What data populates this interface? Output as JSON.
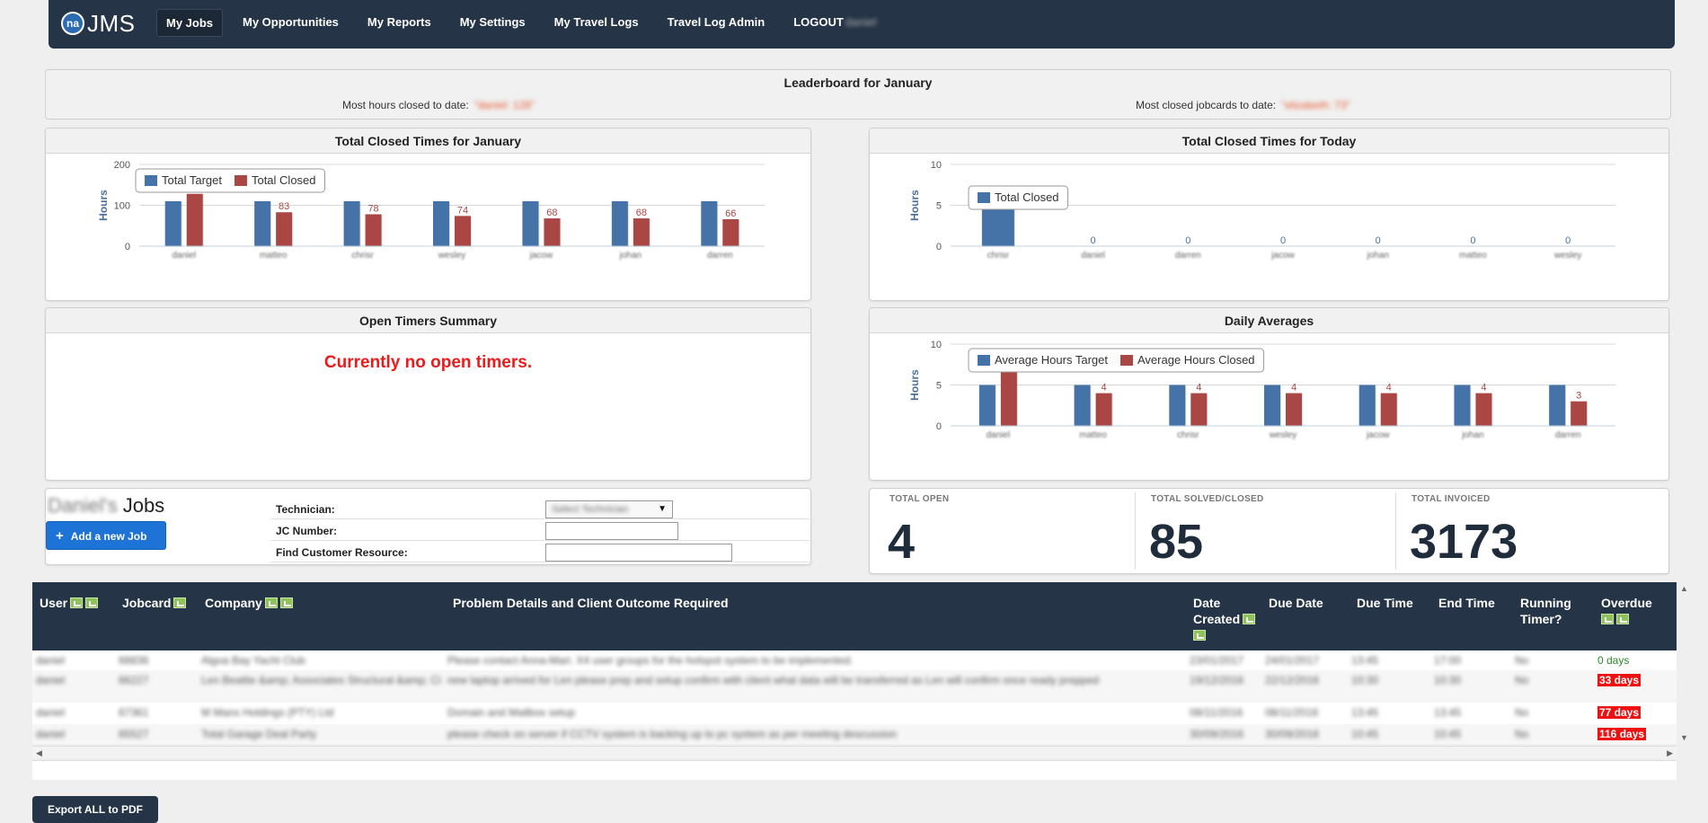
{
  "nav": {
    "logo_text": "na",
    "brand": "JMS",
    "items": [
      {
        "label": "My Jobs",
        "active": true
      },
      {
        "label": "My Opportunities"
      },
      {
        "label": "My Reports"
      },
      {
        "label": "My Settings"
      },
      {
        "label": "My Travel Logs"
      },
      {
        "label": "Travel Log Admin"
      },
      {
        "label": "LOGOUT"
      }
    ],
    "logout_user": "daniel"
  },
  "leaderboard": {
    "title": "Leaderboard for January",
    "hours_label": "Most hours closed to date:",
    "hours_value": "\"daniel: 128\"",
    "jobcards_label": "Most closed jobcards to date:",
    "jobcards_value": "\"elizabeth: 73\""
  },
  "colors": {
    "target": "#4572a7",
    "closed": "#aa4643",
    "nav": "#253446",
    "alert": "#ee1a1a"
  },
  "panels": {
    "closed_month_title": "Total Closed Times for January",
    "closed_today_title": "Total Closed Times for Today",
    "open_timers_title": "Open Timers Summary",
    "open_timers_message": "Currently no open timers.",
    "daily_avg_title": "Daily Averages"
  },
  "chart_data": [
    {
      "type": "bar",
      "title": "Total Closed Times for January",
      "ylabel": "Hours",
      "ylim": [
        0,
        200
      ],
      "yticks": [
        0,
        100,
        200
      ],
      "categories": [
        "daniel",
        "matteo",
        "chrisr",
        "wesley",
        "jacow",
        "johan",
        "darren"
      ],
      "series": [
        {
          "name": "Total Target",
          "values": [
            110,
            110,
            110,
            110,
            110,
            110,
            110
          ]
        },
        {
          "name": "Total Closed",
          "values": [
            128,
            83,
            78,
            74,
            68,
            68,
            66
          ],
          "labels": [
            "",
            "83",
            "78",
            "74",
            "68",
            "68",
            "66"
          ]
        }
      ],
      "legend": "top-left",
      "grid": true
    },
    {
      "type": "bar",
      "title": "Total Closed Times for Today",
      "ylabel": "Hours",
      "ylim": [
        0,
        10
      ],
      "yticks": [
        0,
        5,
        10
      ],
      "categories": [
        "chrisr",
        "daniel",
        "darren",
        "jacow",
        "johan",
        "matteo",
        "wesley"
      ],
      "series": [
        {
          "name": "Total Closed",
          "values": [
            5,
            0,
            0,
            0,
            0,
            0,
            0
          ],
          "labels": [
            "5",
            "0",
            "0",
            "0",
            "0",
            "0",
            "0"
          ]
        }
      ],
      "legend": "top-left",
      "grid": true
    },
    {
      "type": "bar",
      "title": "Daily Averages",
      "ylabel": "Hours",
      "ylim": [
        0,
        10
      ],
      "yticks": [
        0,
        5,
        10
      ],
      "categories": [
        "daniel",
        "matteo",
        "chrisr",
        "wesley",
        "jacow",
        "johan",
        "darren"
      ],
      "series": [
        {
          "name": "Average Hours Target",
          "values": [
            5,
            5,
            5,
            5,
            5,
            5,
            5
          ]
        },
        {
          "name": "Average Hours Closed",
          "values": [
            7,
            4,
            4,
            4,
            4,
            4,
            3
          ],
          "labels": [
            "",
            "4",
            "4",
            "4",
            "4",
            "4",
            "3"
          ]
        }
      ],
      "legend": "top-left",
      "grid": true
    }
  ],
  "jobs": {
    "owner": "Daniel's",
    "title": "Jobs",
    "add_button": "Add a new Job",
    "filters": {
      "technician_label": "Technician:",
      "technician_value": "Select Technician",
      "jc_label": "JC Number:",
      "jc_value": "",
      "resource_label": "Find Customer Resource:",
      "resource_value": ""
    }
  },
  "stats": [
    {
      "label": "TOTAL OPEN",
      "value": "4"
    },
    {
      "label": "TOTAL SOLVED/CLOSED",
      "value": "85"
    },
    {
      "label": "TOTAL INVOICED",
      "value": "3173"
    }
  ],
  "table": {
    "headers": {
      "user": "User",
      "jobcard": "Jobcard",
      "company": "Company",
      "problem": "Problem Details and Client Outcome Required",
      "date_created_1": "Date",
      "date_created_2": "Created",
      "due_date": "Due Date",
      "due_time": "Due Time",
      "end_time": "End Time",
      "running_1": "Running",
      "running_2": "Timer?",
      "overdue": "Overdue"
    },
    "rows": [
      {
        "user": "daniel",
        "jobcard": "68836",
        "company": "Algoa Bay Yacht Club",
        "problem": "Please contact Anna-Mari. X4 user groups for the hotspot system to be implemented.",
        "created": "23/01/2017",
        "due_date": "24/01/2017",
        "due_time": "13:45",
        "end_time": "17:00",
        "running": "No",
        "overdue": "0 days"
      },
      {
        "user": "daniel",
        "jobcard": "66227",
        "company": "Len Beattie &amp; Associates Structural &amp; Ci",
        "problem": "new laptop arrived for Len please prep and setup confirm with client what data will be transferred as Len will confirm once ready prepped",
        "created": "19/12/2016",
        "due_date": "22/12/2016",
        "due_time": "10:30",
        "end_time": "10:30",
        "running": "No",
        "overdue": "33 days"
      },
      {
        "user": "daniel",
        "jobcard": "67361",
        "company": "M Mans Holdings (PTY) Ltd",
        "problem": "Domain and Mailbox setup",
        "created": "08/11/2016",
        "due_date": "08/11/2016",
        "due_time": "13:45",
        "end_time": "13:45",
        "running": "No",
        "overdue": "77 days"
      },
      {
        "user": "daniel",
        "jobcard": "65527",
        "company": "Total Garage Deal Party",
        "problem": "please check on server if CCTV system is backing up to pc system as per meeting descussion",
        "created": "30/09/2016",
        "due_date": "30/09/2016",
        "due_time": "10:45",
        "end_time": "10:45",
        "running": "No",
        "overdue": "116 days"
      }
    ]
  },
  "export_button": "Export ALL to PDF"
}
